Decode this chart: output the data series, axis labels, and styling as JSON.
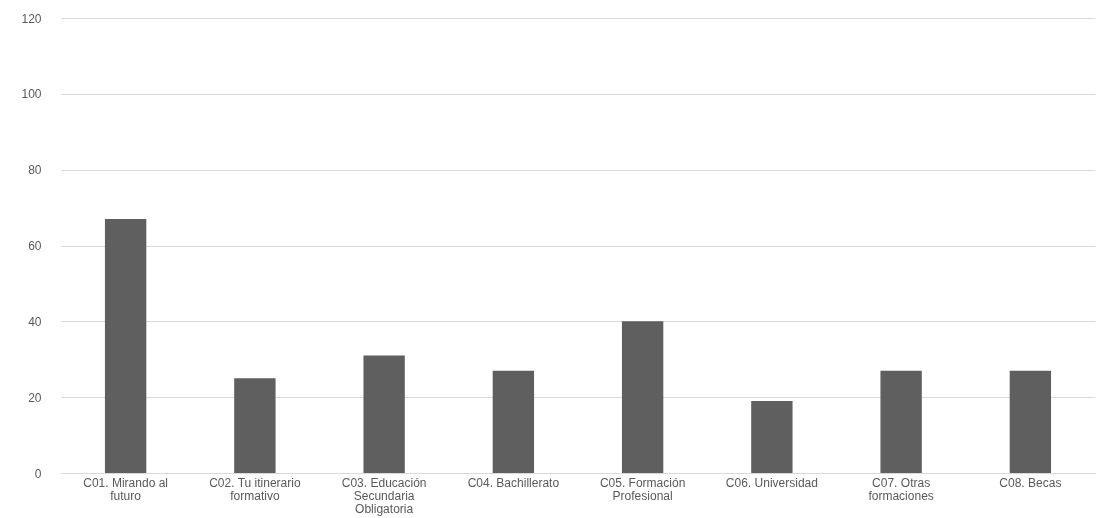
{
  "chart_data": {
    "type": "bar",
    "categories": [
      "C01. Mirando al futuro",
      "C02. Tu itinerario formativo",
      "C03. Educación Secundaria Obligatoria",
      "C04. Bachillerato",
      "C05. Formación Profesional",
      "C06. Universidad",
      "C07. Otras formaciones",
      "C08. Becas"
    ],
    "values": [
      67,
      25,
      31,
      27,
      40,
      19,
      27,
      27
    ],
    "color": "#5f5f5f",
    "ylim": [
      0,
      120
    ],
    "yticks": [
      0,
      20,
      40,
      60,
      80,
      100,
      120
    ],
    "grid": "y"
  }
}
